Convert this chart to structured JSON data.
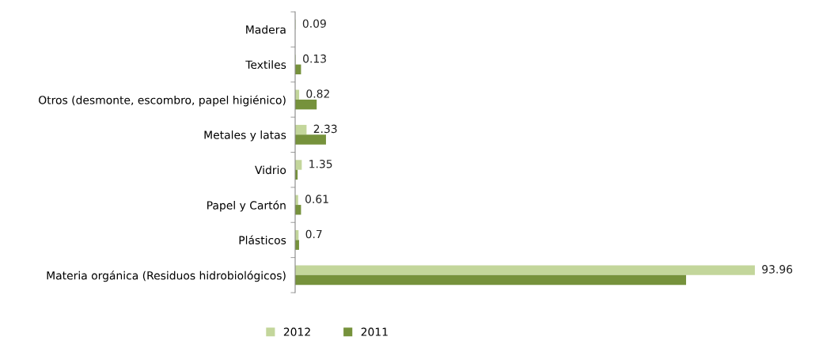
{
  "chart_data": {
    "type": "bar",
    "orientation": "horizontal",
    "categories": [
      "Madera",
      "Textiles",
      "Otros (desmonte, escombro, papel higiénico)",
      "Metales y latas",
      "Vidrio",
      "Papel y Cartón",
      "Plásticos",
      "Materia orgánica (Residuos hidrobiológicos)"
    ],
    "series": [
      {
        "name": "2012",
        "color": "#c3d69b",
        "values": [
          0.09,
          0.13,
          0.82,
          2.33,
          1.35,
          0.61,
          0.7,
          93.96
        ],
        "value_labels": [
          "0.09",
          "0.13",
          "0.82",
          "2.33",
          "1.35",
          "0.61",
          "0.7",
          "93.96"
        ]
      },
      {
        "name": "2011",
        "color": "#76923c",
        "values": [
          null,
          1.2,
          4.4,
          6.3,
          0.5,
          1.2,
          0.8,
          79.9
        ]
      }
    ],
    "tick_labels": "y",
    "grid": false,
    "legend": "bottom"
  }
}
